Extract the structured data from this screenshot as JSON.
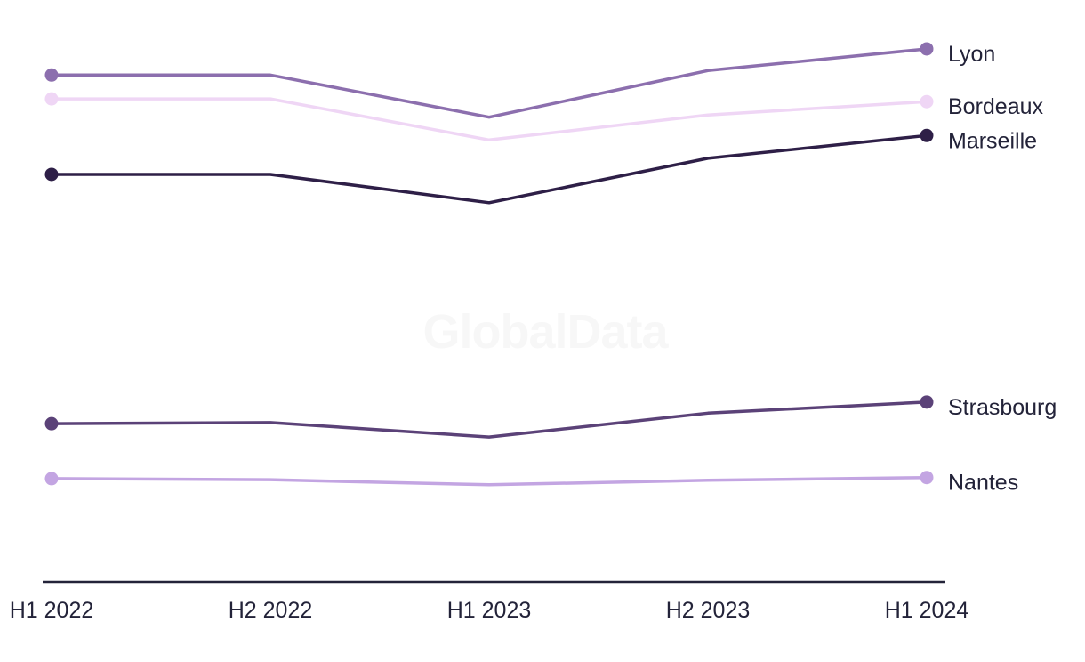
{
  "watermark": {
    "text": "GlobalData"
  },
  "colors": {
    "background": "#ffffff",
    "axis": "#232339",
    "label_text": "#232339",
    "watermark": "#f7f7f7"
  },
  "chart_data": {
    "type": "line",
    "title": "",
    "xlabel": "",
    "ylabel": "",
    "categories": [
      "H1 2022",
      "H2 2022",
      "H1 2023",
      "H2 2023",
      "H1 2024"
    ],
    "y_axis_shown": false,
    "y_units": "relative (no y-axis ticks shown; values estimated as % of plot height)",
    "ylim": [
      0,
      100
    ],
    "grid": false,
    "legend_position": "end-of-line labels, right side",
    "markers": "dots on first and last points only",
    "series": [
      {
        "name": "Lyon",
        "color": "#8C6FAE",
        "values": [
          91.3,
          91.3,
          83.7,
          92.1,
          96.0
        ]
      },
      {
        "name": "Bordeaux",
        "color": "#EFD6F5",
        "values": [
          87.0,
          87.0,
          79.6,
          84.1,
          86.5
        ]
      },
      {
        "name": "Marseille",
        "color": "#2E1F47",
        "values": [
          73.4,
          73.4,
          68.3,
          76.3,
          80.4
        ]
      },
      {
        "name": "Strasbourg",
        "color": "#5B4278",
        "values": [
          28.5,
          28.7,
          26.1,
          30.4,
          32.4
        ]
      },
      {
        "name": "Nantes",
        "color": "#C3A5E2",
        "values": [
          18.6,
          18.4,
          17.5,
          18.3,
          18.8
        ]
      }
    ]
  }
}
